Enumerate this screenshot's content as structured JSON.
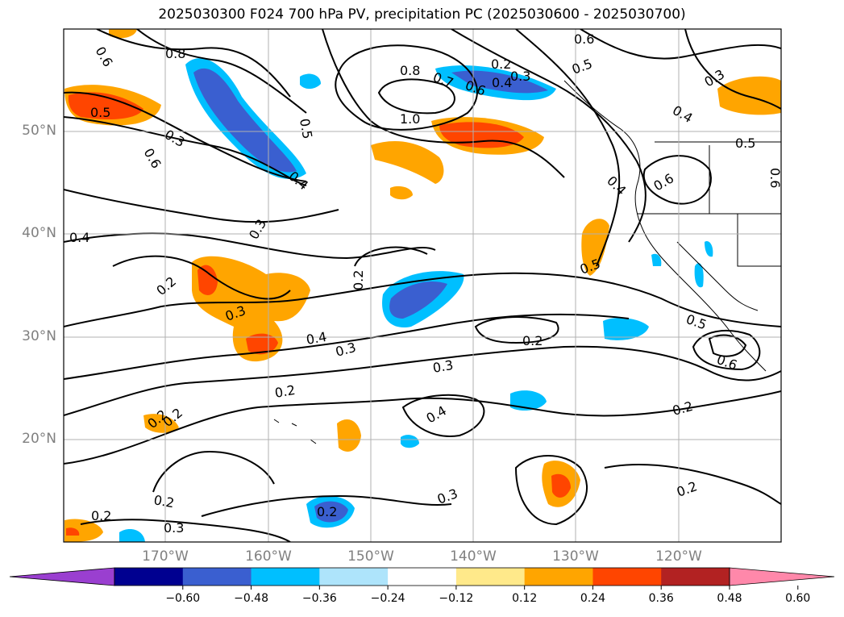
{
  "title": "2025030300 F024 700 hPa PV, precipitation PC (2025030600 - 2025030700)",
  "lat_labels": [
    "50°N",
    "40°N",
    "30°N",
    "20°N"
  ],
  "lon_labels": [
    "170°W",
    "160°W",
    "150°W",
    "140°W",
    "130°W",
    "120°W"
  ],
  "colorbar": {
    "ticks": [
      "−0.60",
      "−0.48",
      "−0.36",
      "−0.24",
      "−0.12",
      "0.12",
      "0.24",
      "0.36",
      "0.48",
      "0.60"
    ],
    "colors": [
      "#9a3fd0",
      "#000090",
      "#3a5fd0",
      "#00bfff",
      "#aee4fb",
      "#ffffff",
      "#ffe98a",
      "#ffa500",
      "#ff4500",
      "#b22222",
      "#ff88aa"
    ]
  },
  "contour_labels": [
    "0.6",
    "0.8",
    "0.5",
    "0.3",
    "0.6",
    "0.5",
    "0.4",
    "0.8",
    "1.0",
    "0.7",
    "0.6",
    "0.2",
    "0.4",
    "0.3",
    "0.6",
    "0.5",
    "0.3",
    "0.4",
    "0.5",
    "0.4",
    "0.6",
    "0.6",
    "0.4",
    "0.3",
    "0.2",
    "0.2",
    "0.3",
    "0.4",
    "0.3",
    "0.2",
    "0.3",
    "0.2",
    "0.5",
    "0.5",
    "0.6",
    "0.2",
    "0.4",
    "0.2",
    "0.2",
    "0.3",
    "0.2",
    "0.2",
    "0.3",
    "0.2",
    "0.2"
  ],
  "colors": {
    "grid": "#b0b0b0",
    "contour": "#000000",
    "axis_text": "#808080"
  }
}
